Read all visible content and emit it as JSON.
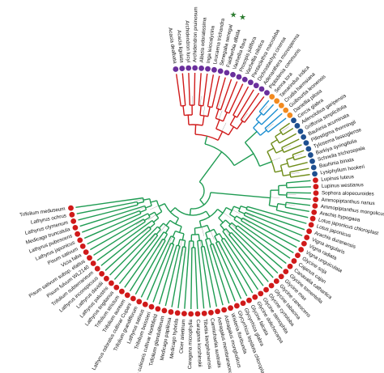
{
  "colors": {
    "green": "#1e9b52",
    "red": "#d01a1a",
    "blue": "#1d8fd1",
    "olive": "#6e8c18",
    "purple": "#6a2f9c",
    "orange": "#f28a1f",
    "darkblue": "#1e4f8f",
    "star": "#2e7d32"
  },
  "leaves_upper": [
    {
      "label": "Acacia dealbata",
      "dot": "purple"
    },
    {
      "label": "Acacia ligulata",
      "dot": "purple"
    },
    {
      "label": "Archidendron lucyi",
      "dot": "purple"
    },
    {
      "label": "Archidendron pruinosum",
      "dot": "purple"
    },
    {
      "label": "Albizia odoratissima",
      "dot": "purple"
    },
    {
      "label": "Inga leiocalycina",
      "dot": "purple"
    },
    {
      "label": "Leucaena trichandra",
      "dot": "purple"
    },
    {
      "label": "Senegalia senegal",
      "dot": "purple",
      "star": true
    },
    {
      "label": "Faidherbia albida",
      "dot": "purple",
      "star": true
    },
    {
      "label": "Vachellia flava",
      "dot": "purple"
    },
    {
      "label": "Prosopis juliflora",
      "dot": "purple"
    },
    {
      "label": "Vachellia nilotica",
      "dot": "purple"
    },
    {
      "label": "Pentaclethra macroloba",
      "dot": "purple"
    },
    {
      "label": "Dichrostachys cinerea",
      "dot": "purple"
    },
    {
      "label": "Adenanthera microsperma",
      "dot": "purple"
    },
    {
      "label": "Piptadenia communis",
      "dot": "purple"
    },
    {
      "label": "Senna tora",
      "dot": "orange"
    },
    {
      "label": "Tamarindus indica",
      "dot": "orange"
    },
    {
      "label": "Crudia harmsiana",
      "dot": "orange"
    },
    {
      "label": "Guibourtia leonensis",
      "dot": "orange"
    },
    {
      "label": "Daniellia pilosa",
      "dot": "orange"
    },
    {
      "label": "Cercis glabra",
      "dot": "darkblue"
    },
    {
      "label": "Adenolobus garipensis",
      "dot": "darkblue"
    },
    {
      "label": "Griffonia simplicifolia",
      "dot": "darkblue"
    },
    {
      "label": "Bauhinia acuminata",
      "dot": "darkblue"
    },
    {
      "label": "Piliostigma thonningii",
      "dot": "darkblue"
    },
    {
      "label": "Tylosema fassoglense",
      "dot": "darkblue"
    },
    {
      "label": "Barkiya syringifolia",
      "dot": "darkblue"
    },
    {
      "label": "Schnella trichosepala",
      "dot": "darkblue"
    },
    {
      "label": "Bauhinia binata",
      "dot": "darkblue"
    },
    {
      "label": "Lysiphyllum hookeri",
      "dot": "darkblue"
    },
    {
      "label": "Lupinus luteus",
      "dot": "red"
    },
    {
      "label": "Lupinus westianus",
      "dot": "red"
    },
    {
      "label": "Sophora alopecuroides",
      "dot": "red"
    },
    {
      "label": "Ammopiptanthus nanus",
      "dot": "red"
    },
    {
      "label": "Ammopiptanthus mongolicus",
      "dot": "red"
    },
    {
      "label": "Arachis hypogaea",
      "dot": "red"
    },
    {
      "label": "Lotus japonicus chloroplast",
      "dot": "red"
    }
  ],
  "leaves_lower": [
    {
      "label": "Lotus japonicus",
      "dot": "red"
    },
    {
      "label": "Arachis duranensis",
      "dot": "red"
    },
    {
      "label": "Vigna angularis",
      "dot": "red"
    },
    {
      "label": "Vigna radiata",
      "dot": "red"
    },
    {
      "label": "Vigna unguiculata",
      "dot": "red"
    },
    {
      "label": "Glycine soja",
      "dot": "red"
    },
    {
      "label": "Cajanus cajan",
      "dot": "red"
    },
    {
      "label": "Canavalia cathartica",
      "dot": "red"
    },
    {
      "label": "Glycine tomentella",
      "dot": "red"
    },
    {
      "label": "Glycine max",
      "dot": "red"
    },
    {
      "label": "Glycine canescens",
      "dot": "red"
    },
    {
      "label": "Glycine tabacina",
      "dot": "red"
    },
    {
      "label": "Glycine cyrtoloba",
      "dot": "red"
    },
    {
      "label": "Glycine stenophita",
      "dot": "red"
    },
    {
      "label": "Glycine dolichocarpa",
      "dot": "red"
    },
    {
      "label": "Glycine falcata",
      "dot": "red"
    },
    {
      "label": "Glycyrrhiza glabra",
      "dot": "red"
    },
    {
      "label": "Glycyrrhiza lepidota chloroplast",
      "dot": "red"
    },
    {
      "label": "Wisteria floribunda",
      "dot": "red"
    },
    {
      "label": "Astragalus mongholicus",
      "dot": "red"
    },
    {
      "label": "Astragalus membranaceus",
      "dot": "red"
    },
    {
      "label": "Carmichaelia australis",
      "dot": "red"
    },
    {
      "label": "Tibetia liangshanensis",
      "dot": "red"
    },
    {
      "label": "Caragana korshinskii",
      "dot": "red"
    },
    {
      "label": "Caragana microphylla",
      "dot": "red"
    },
    {
      "label": "Cicer arietinum",
      "dot": "red"
    },
    {
      "label": "Medicago hybrida",
      "dot": "red"
    },
    {
      "label": "Medicago papillosa",
      "dot": "red"
    },
    {
      "label": "Trifolium glanduliferum",
      "dot": "red"
    },
    {
      "label": "Lens culinaris cultivar Northfield",
      "dot": "red"
    },
    {
      "label": "Trifolium boissieri",
      "dot": "red"
    },
    {
      "label": "Lathyrus sativus",
      "dot": "red"
    },
    {
      "label": "Trifolium grandiflorum",
      "dot": "red"
    },
    {
      "label": "Lathyrus odoratus cultivar Cupani",
      "dot": "red"
    },
    {
      "label": "Trifolium aureum",
      "dot": "red"
    },
    {
      "label": "Trifolium strictum",
      "dot": "red"
    },
    {
      "label": "Lathyrus tingitanus",
      "dot": "red"
    },
    {
      "label": "Lathyrus palustris",
      "dot": "red"
    },
    {
      "label": "Lathyrus davidii",
      "dot": "red"
    },
    {
      "label": "Lathyrus inconspicuus",
      "dot": "red"
    },
    {
      "label": "Trifolium subterraneum",
      "dot": "red"
    },
    {
      "label": "Pisum fulvum WL2140",
      "dot": "red"
    },
    {
      "label": "Pisum sativum subsp. elatius",
      "dot": "red"
    },
    {
      "label": "Vicia faba",
      "dot": "red"
    },
    {
      "label": "Pisum sativum",
      "dot": "red"
    },
    {
      "label": "Lathyrus japonicus",
      "dot": "red"
    },
    {
      "label": "Lathyrus pubescens",
      "dot": "red"
    },
    {
      "label": "Medicago truncatula",
      "dot": "red"
    },
    {
      "label": "Lathyrus clymenum",
      "dot": "red"
    },
    {
      "label": "Lathyrus ochrus",
      "dot": "red"
    },
    {
      "label": "Trifolium meduseum",
      "dot": "red"
    }
  ]
}
